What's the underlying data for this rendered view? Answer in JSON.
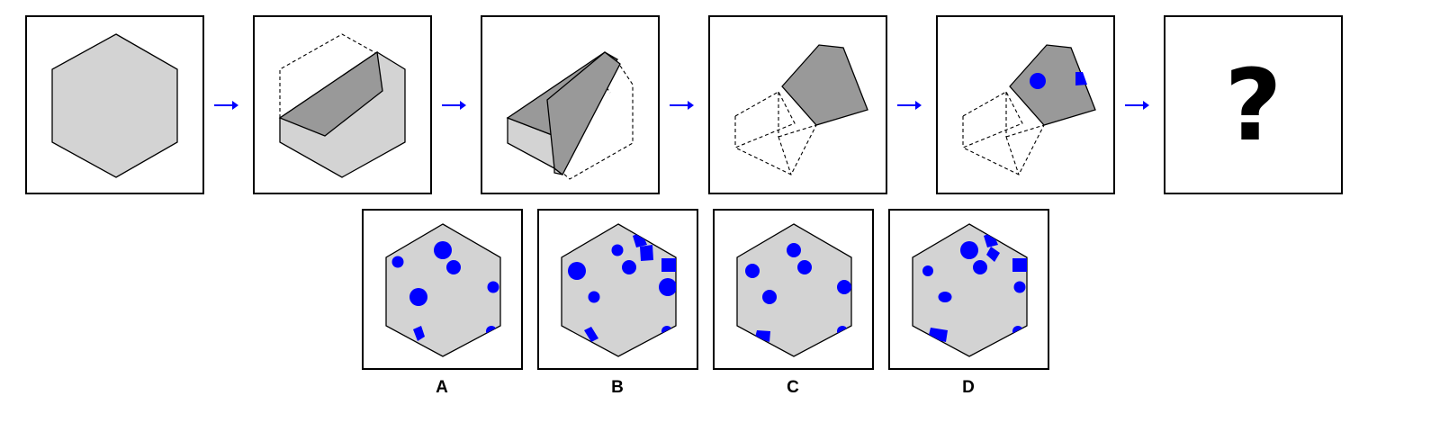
{
  "question_mark": "?",
  "colors": {
    "shape_fill": "#d3d3d3",
    "fold_fill": "#999999",
    "accent": "#0000ff",
    "stroke": "#000000"
  },
  "sequence": [
    {
      "step": 1,
      "description_icon": "hexagon-icon"
    },
    {
      "step": 2,
      "description_icon": "fold-1-icon"
    },
    {
      "step": 3,
      "description_icon": "fold-2-icon"
    },
    {
      "step": 4,
      "description_icon": "fold-3-icon"
    },
    {
      "step": 5,
      "description_icon": "punched-icon"
    }
  ],
  "options": [
    {
      "label": "A"
    },
    {
      "label": "B"
    },
    {
      "label": "C"
    },
    {
      "label": "D"
    }
  ]
}
